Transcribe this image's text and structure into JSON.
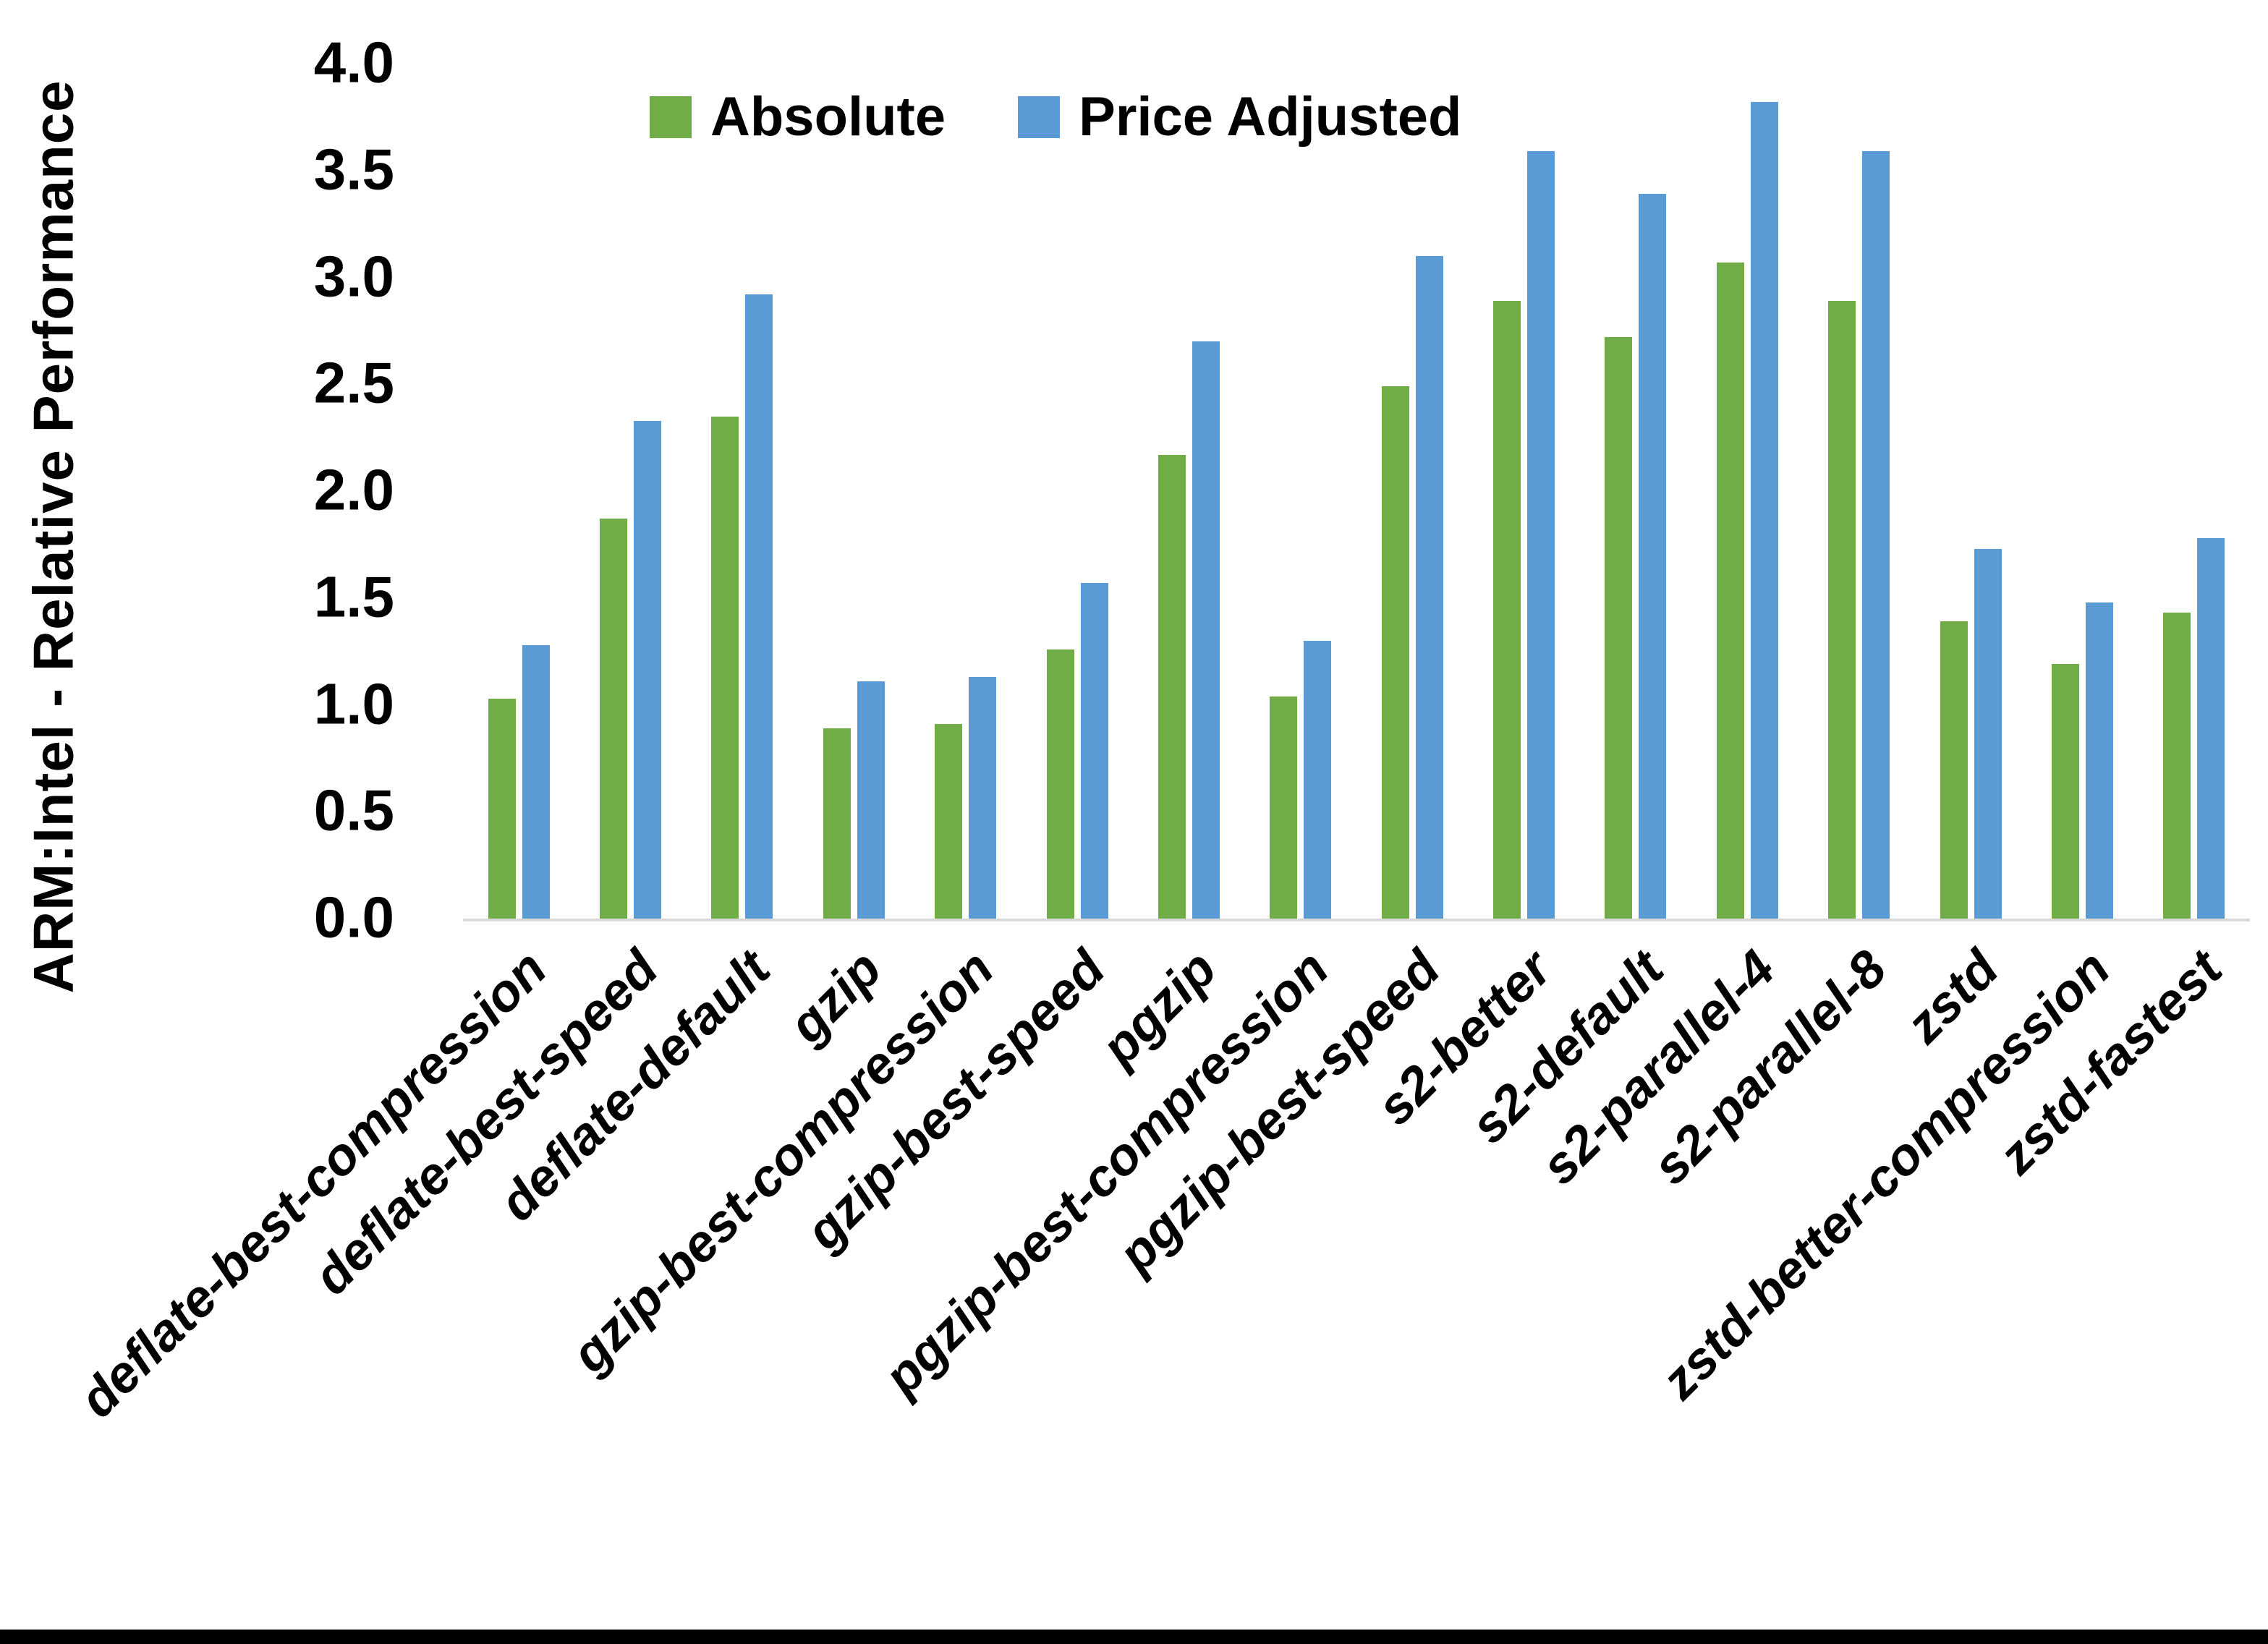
{
  "chart_data": {
    "type": "bar",
    "title": "",
    "ylabel": "ARM:Intel - Relative Performance",
    "xlabel": "",
    "ylim": [
      0.0,
      4.0
    ],
    "ytick_step": 0.5,
    "ytick_labels": [
      "0.0",
      "0.5",
      "1.0",
      "1.5",
      "2.0",
      "2.5",
      "3.0",
      "3.5",
      "4.0"
    ],
    "grid": false,
    "legend_position": "top-center",
    "categories": [
      "deflate-best-compression",
      "deflate-best-speed",
      "deflate-default",
      "gzip",
      "gzip-best-compression",
      "gzip-best-speed",
      "pgzip",
      "pgzip-best-compression",
      "pgzip-best-speed",
      "s2-better",
      "s2-default",
      "s2-parallel-4",
      "s2-parallel-8",
      "zstd",
      "zstd-better-compression",
      "zstd-fastest"
    ],
    "series": [
      {
        "name": "Absolute",
        "color": "#70AD47",
        "values": [
          1.03,
          1.87,
          2.35,
          0.89,
          0.91,
          1.26,
          2.17,
          1.04,
          2.49,
          2.89,
          2.72,
          3.07,
          2.89,
          1.39,
          1.19,
          1.43
        ]
      },
      {
        "name": "Price Adjusted",
        "color": "#5B9BD5",
        "values": [
          1.28,
          2.33,
          2.92,
          1.11,
          1.13,
          1.57,
          2.7,
          1.3,
          3.1,
          3.59,
          3.39,
          3.82,
          3.59,
          1.73,
          1.48,
          1.78
        ]
      }
    ],
    "colors": {
      "background": "#FFFFFF",
      "axis_line": "#D9D9D9",
      "text": "#000000",
      "bottom_border": "#000000"
    }
  }
}
